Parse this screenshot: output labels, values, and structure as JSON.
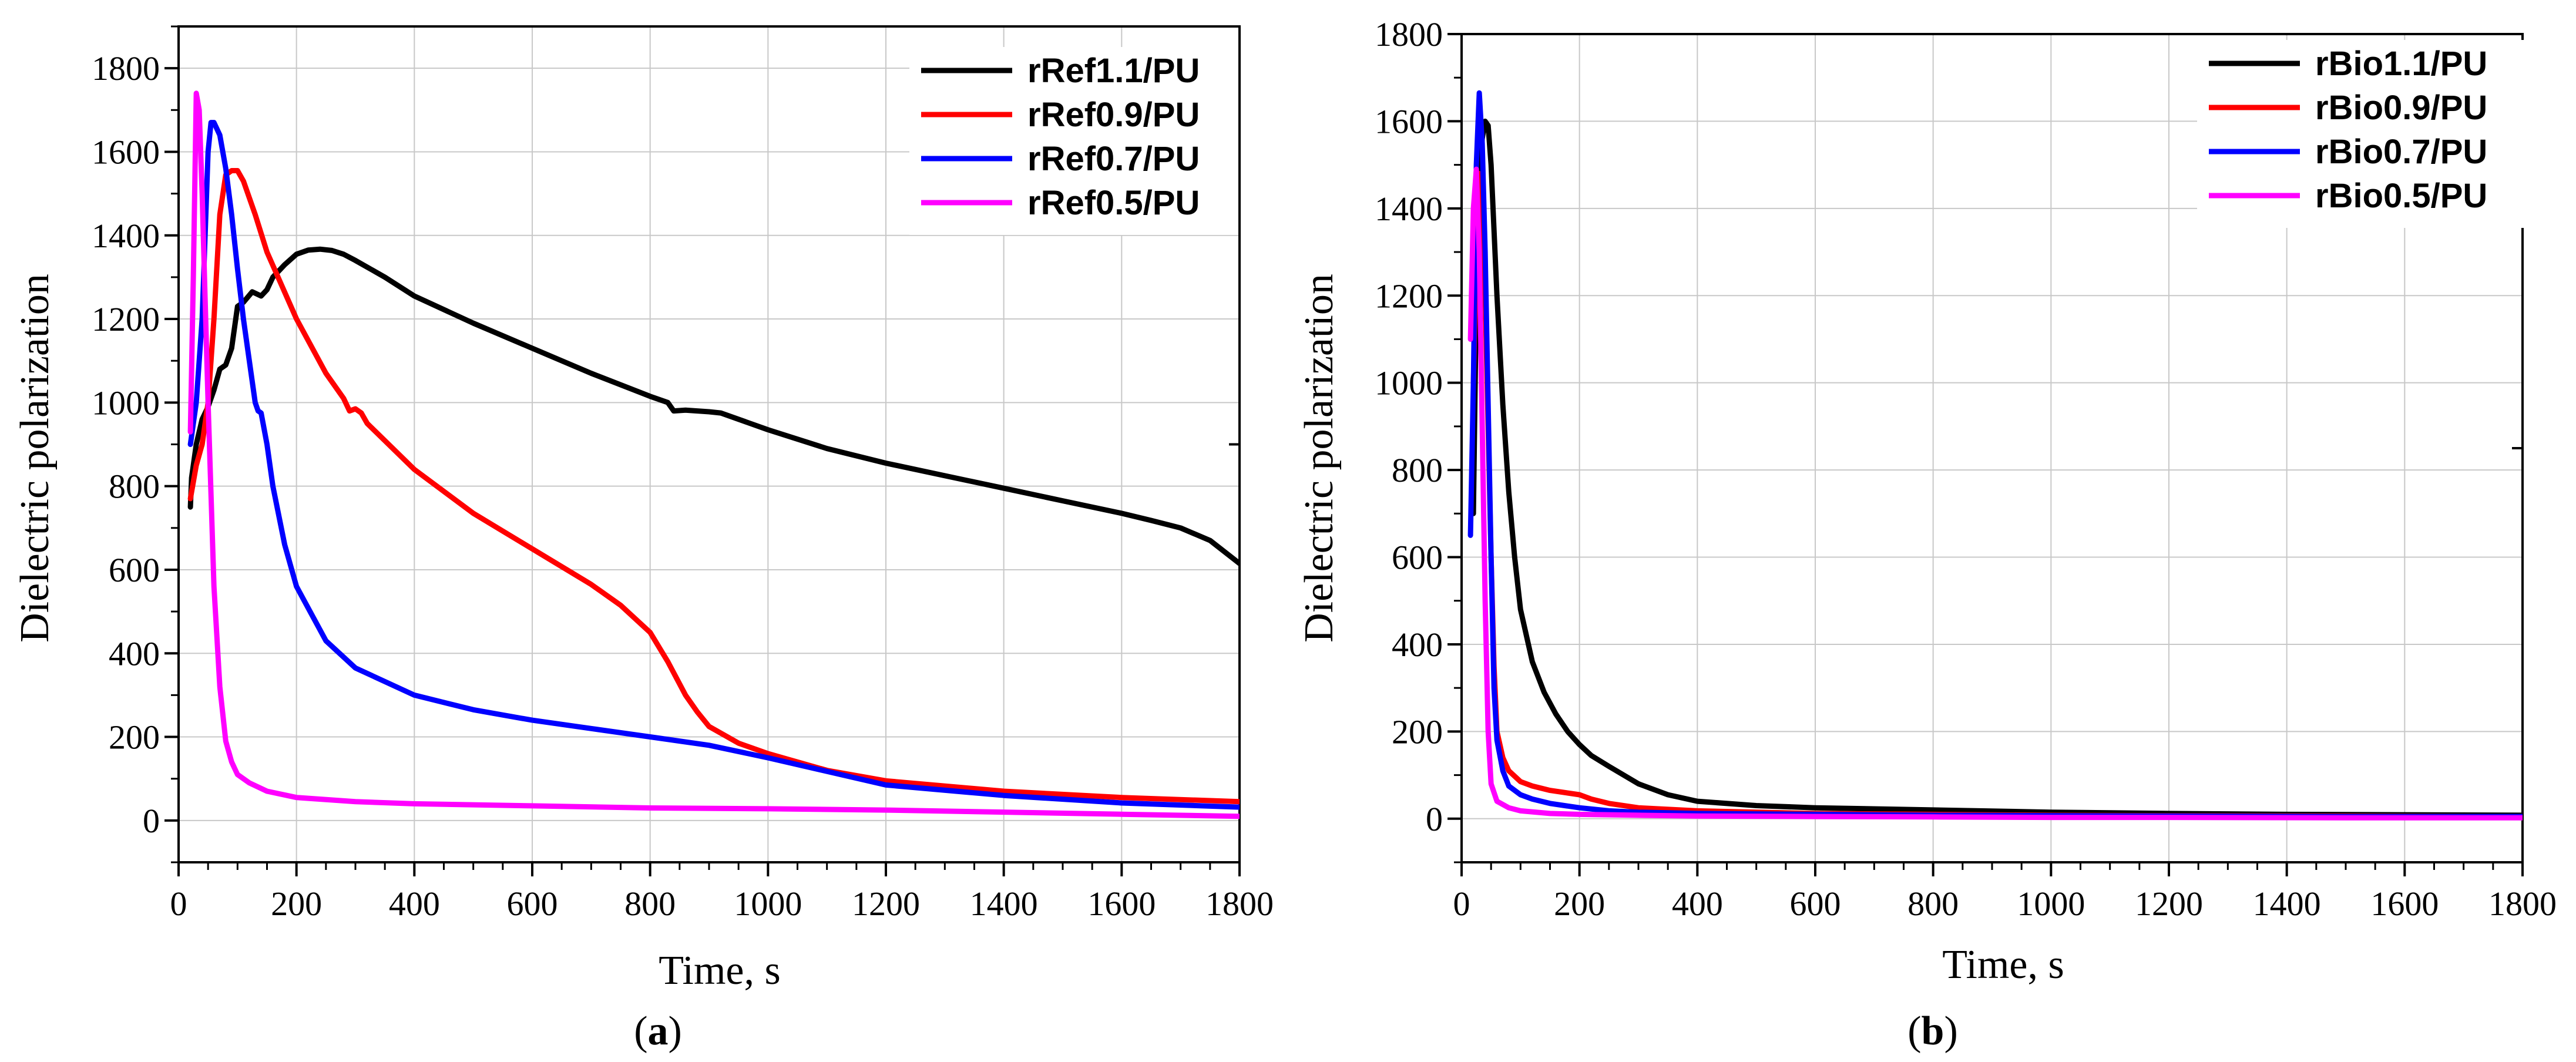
{
  "chart_data": [
    {
      "type": "line",
      "panel_label": "a",
      "xlabel": "Time, s",
      "ylabel": "Dielectric polarization",
      "xlim": [
        0,
        1800
      ],
      "ylim": [
        -100,
        1900
      ],
      "xticks": [
        0,
        200,
        400,
        600,
        800,
        1000,
        1200,
        1400,
        1600,
        1800
      ],
      "yticks": [
        0,
        200,
        400,
        600,
        800,
        1000,
        1200,
        1400,
        1600,
        1800
      ],
      "x_minor": 50,
      "y_minor": 100,
      "grid": true,
      "legend_position": "top-right",
      "series": [
        {
          "name": "rRef1.1/PU",
          "color": "#000000",
          "x": [
            20,
            22,
            30,
            40,
            50,
            60,
            70,
            80,
            90,
            100,
            110,
            125,
            140,
            150,
            160,
            180,
            200,
            220,
            240,
            260,
            280,
            300,
            350,
            400,
            500,
            600,
            700,
            800,
            830,
            840,
            860,
            900,
            920,
            1000,
            1100,
            1200,
            1300,
            1400,
            1500,
            1600,
            1650,
            1700,
            1750,
            1800
          ],
          "y": [
            750,
            820,
            900,
            960,
            990,
            1030,
            1080,
            1090,
            1130,
            1230,
            1240,
            1265,
            1255,
            1270,
            1300,
            1330,
            1355,
            1365,
            1367,
            1364,
            1355,
            1340,
            1300,
            1255,
            1190,
            1130,
            1070,
            1015,
            1000,
            980,
            982,
            978,
            975,
            935,
            890,
            855,
            825,
            795,
            765,
            735,
            718,
            700,
            670,
            615
          ]
        },
        {
          "name": "rRef0.9/PU",
          "color": "#ff0000",
          "x": [
            20,
            30,
            40,
            50,
            60,
            70,
            80,
            90,
            100,
            110,
            130,
            150,
            200,
            250,
            280,
            290,
            300,
            310,
            320,
            400,
            500,
            600,
            700,
            750,
            800,
            830,
            860,
            880,
            900,
            950,
            1000,
            1100,
            1200,
            1400,
            1600,
            1800
          ],
          "y": [
            770,
            850,
            900,
            1000,
            1200,
            1450,
            1545,
            1555,
            1555,
            1530,
            1450,
            1360,
            1200,
            1070,
            1010,
            980,
            985,
            975,
            950,
            840,
            735,
            650,
            565,
            515,
            450,
            380,
            300,
            260,
            225,
            185,
            160,
            120,
            95,
            70,
            55,
            45
          ]
        },
        {
          "name": "rRef0.7/PU",
          "color": "#0000ff",
          "x": [
            20,
            30,
            40,
            50,
            55,
            60,
            70,
            80,
            90,
            100,
            110,
            120,
            130,
            135,
            140,
            150,
            160,
            180,
            200,
            250,
            300,
            400,
            500,
            600,
            700,
            800,
            900,
            1000,
            1200,
            1400,
            1600,
            1800
          ],
          "y": [
            900,
            1000,
            1200,
            1600,
            1670,
            1670,
            1640,
            1560,
            1450,
            1320,
            1200,
            1100,
            1000,
            980,
            975,
            900,
            800,
            660,
            560,
            430,
            365,
            300,
            265,
            240,
            220,
            200,
            180,
            150,
            85,
            60,
            42,
            32
          ]
        },
        {
          "name": "rRef0.5/PU",
          "color": "#ff00ff",
          "x": [
            20,
            25,
            30,
            35,
            40,
            45,
            50,
            55,
            60,
            70,
            80,
            90,
            100,
            120,
            150,
            200,
            300,
            400,
            600,
            800,
            1000,
            1200,
            1400,
            1600,
            1800
          ],
          "y": [
            930,
            1300,
            1740,
            1700,
            1500,
            1250,
            1000,
            780,
            560,
            320,
            190,
            140,
            110,
            90,
            70,
            55,
            45,
            40,
            35,
            30,
            28,
            25,
            20,
            15,
            10
          ]
        }
      ]
    },
    {
      "type": "line",
      "panel_label": "b",
      "xlabel": "Time, s",
      "ylabel": "Dielectric polarization",
      "xlim": [
        0,
        1800
      ],
      "ylim": [
        -100,
        1800
      ],
      "xticks": [
        0,
        200,
        400,
        600,
        800,
        1000,
        1200,
        1400,
        1600,
        1800
      ],
      "yticks": [
        0,
        200,
        400,
        600,
        800,
        1000,
        1200,
        1400,
        1600,
        1800
      ],
      "x_minor": 50,
      "y_minor": 100,
      "grid": true,
      "legend_position": "top-right",
      "series": [
        {
          "name": "rBio1.1/PU",
          "color": "#000000",
          "x": [
            20,
            25,
            30,
            35,
            40,
            45,
            50,
            55,
            60,
            70,
            80,
            90,
            100,
            120,
            140,
            160,
            180,
            200,
            220,
            250,
            300,
            350,
            400,
            500,
            600,
            800,
            1000,
            1200,
            1400,
            1600,
            1800
          ],
          "y": [
            700,
            1200,
            1450,
            1560,
            1600,
            1590,
            1500,
            1350,
            1200,
            950,
            750,
            600,
            480,
            360,
            290,
            240,
            200,
            170,
            145,
            120,
            80,
            55,
            40,
            30,
            25,
            20,
            15,
            12,
            10,
            9,
            8
          ]
        },
        {
          "name": "rBio0.9/PU",
          "color": "#ff0000",
          "x": [
            20,
            25,
            30,
            35,
            40,
            45,
            50,
            55,
            60,
            70,
            80,
            100,
            120,
            150,
            200,
            220,
            250,
            300,
            400,
            600,
            800,
            1000,
            1200,
            1500,
            1800
          ],
          "y": [
            1000,
            1300,
            1480,
            1400,
            1200,
            900,
            600,
            350,
            200,
            140,
            110,
            85,
            75,
            65,
            55,
            45,
            35,
            25,
            18,
            12,
            10,
            8,
            7,
            6,
            5
          ]
        },
        {
          "name": "rBio0.7/PU",
          "color": "#0000ff",
          "x": [
            15,
            20,
            25,
            30,
            35,
            40,
            45,
            50,
            55,
            60,
            70,
            80,
            100,
            120,
            150,
            200,
            250,
            300,
            400,
            600,
            800,
            1000,
            1200,
            1500,
            1800
          ],
          "y": [
            650,
            1000,
            1500,
            1665,
            1550,
            1300,
            950,
            600,
            300,
            180,
            110,
            75,
            55,
            45,
            35,
            25,
            18,
            15,
            12,
            10,
            8,
            7,
            6,
            5,
            5
          ]
        },
        {
          "name": "rBio0.5/PU",
          "color": "#ff00ff",
          "x": [
            15,
            20,
            25,
            30,
            35,
            40,
            45,
            50,
            60,
            80,
            100,
            150,
            200,
            300,
            400,
            600,
            800,
            1000,
            1200,
            1500,
            1800
          ],
          "y": [
            1100,
            1400,
            1490,
            1300,
            900,
            500,
            200,
            80,
            40,
            25,
            18,
            12,
            10,
            8,
            6,
            5,
            4,
            3,
            3,
            2,
            2
          ]
        }
      ]
    }
  ]
}
